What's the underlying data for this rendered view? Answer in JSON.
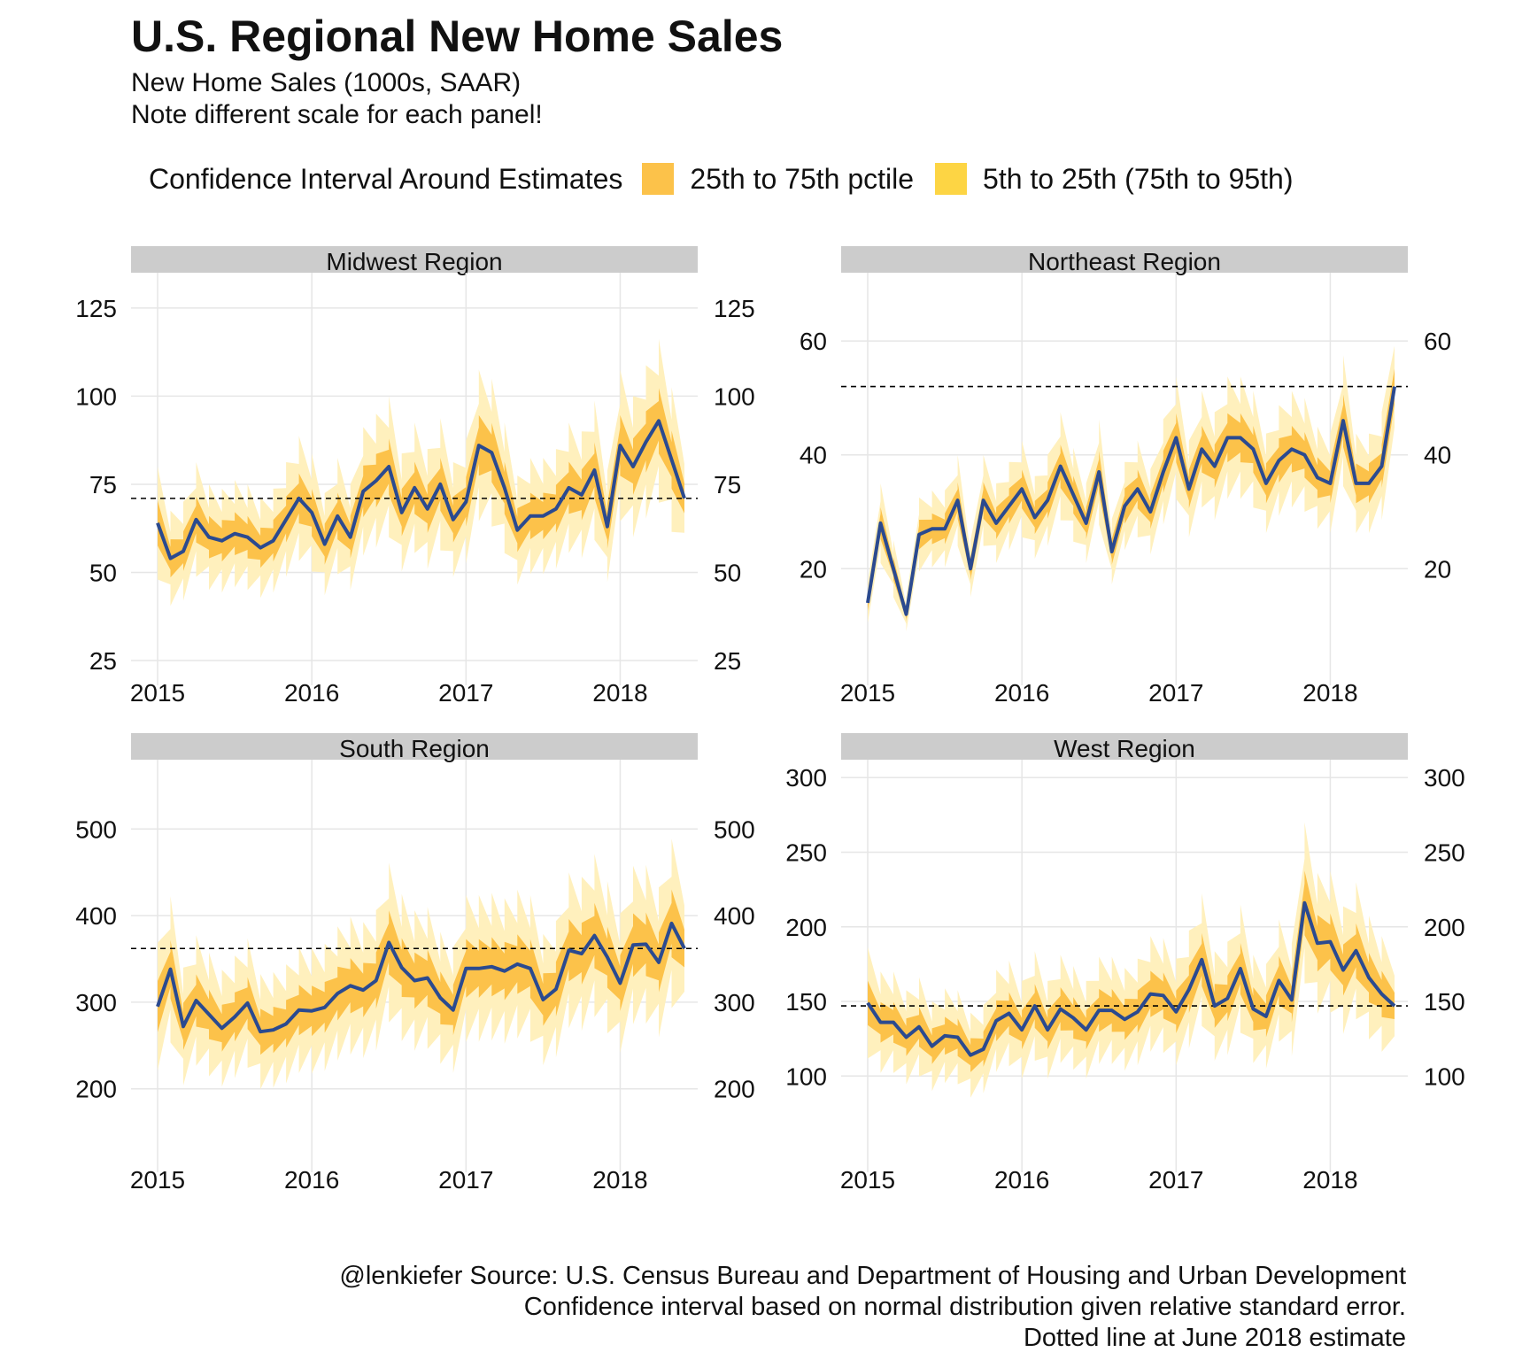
{
  "title": "U.S. Regional New Home Sales",
  "subtitle_lines": [
    "New Home Sales (1000s, SAAR)",
    "Note different scale for each panel!"
  ],
  "legend": {
    "title": "Confidence Interval Around Estimates",
    "items": [
      {
        "label": "25th to 75th pctile",
        "color": "#fcc24a"
      },
      {
        "label": "5th to 25th (75th to 95th)",
        "color": "#fdd544"
      }
    ]
  },
  "caption_lines": [
    "@lenkiefer Source: U.S. Census Bureau and Department of Housing and Urban Development",
    "Confidence interval based on normal distribution given relative standard error.",
    "Dotted line at June 2018 estimate"
  ],
  "colors": {
    "line": "#2b4a8f",
    "band_inner": "#fcc24a",
    "band_outer": "#fff0bd",
    "strip": "#cccccc",
    "grid": "#e6e6e6",
    "reference": "#000000"
  },
  "chart_data": [
    {
      "type": "line",
      "title": "Midwest Region",
      "x_start": "2015-01",
      "x_end": "2018-06",
      "x_ticks": [
        "2015",
        "2016",
        "2017",
        "2018"
      ],
      "ylim": [
        22,
        135
      ],
      "y_ticks": [
        25,
        50,
        75,
        100,
        125
      ],
      "reference_line": 71,
      "values": [
        64,
        54,
        56,
        65,
        60,
        59,
        61,
        60,
        57,
        59,
        65,
        71,
        67,
        58,
        66,
        60,
        73,
        76,
        80,
        67,
        74,
        68,
        75,
        65,
        70,
        86,
        84,
        74,
        62,
        66,
        66,
        68,
        74,
        72,
        79,
        63,
        86,
        80,
        87,
        93,
        82,
        71
      ],
      "band_inner_rel": 0.1,
      "band_outer_rel": 0.25
    },
    {
      "type": "line",
      "title": "Northeast Region",
      "x_start": "2015-01",
      "x_end": "2018-06",
      "x_ticks": [
        "2015",
        "2016",
        "2017",
        "2018"
      ],
      "ylim": [
        2,
        72
      ],
      "y_ticks": [
        20,
        40,
        60
      ],
      "reference_line": 52,
      "values": [
        14,
        28,
        20,
        12,
        26,
        27,
        27,
        32,
        20,
        32,
        28,
        31,
        34,
        29,
        32,
        38,
        33,
        28,
        37,
        23,
        31,
        34,
        30,
        37,
        43,
        34,
        41,
        38,
        43,
        43,
        41,
        35,
        39,
        41,
        40,
        36,
        35,
        46,
        35,
        35,
        38,
        52
      ],
      "band_inner_rel": 0.1,
      "band_outer_rel": 0.25
    },
    {
      "type": "line",
      "title": "South Region",
      "x_start": "2015-01",
      "x_end": "2018-06",
      "x_ticks": [
        "2015",
        "2016",
        "2017",
        "2018"
      ],
      "ylim": [
        120,
        580
      ],
      "y_ticks": [
        200,
        300,
        400,
        500
      ],
      "reference_line": 362,
      "values": [
        295,
        338,
        272,
        302,
        286,
        270,
        283,
        299,
        266,
        268,
        275,
        291,
        290,
        294,
        310,
        319,
        314,
        325,
        369,
        340,
        325,
        328,
        305,
        291,
        339,
        339,
        341,
        336,
        344,
        339,
        303,
        315,
        360,
        356,
        377,
        352,
        322,
        366,
        367,
        346,
        391,
        362
      ],
      "band_inner_rel": 0.1,
      "band_outer_rel": 0.25
    },
    {
      "type": "line",
      "title": "West Region",
      "x_start": "2015-01",
      "x_end": "2018-06",
      "x_ticks": [
        "2015",
        "2016",
        "2017",
        "2018"
      ],
      "ylim": [
        45,
        312
      ],
      "y_ticks": [
        100,
        150,
        200,
        250,
        300
      ],
      "reference_line": 147,
      "values": [
        149,
        136,
        136,
        126,
        133,
        120,
        127,
        126,
        114,
        118,
        137,
        142,
        131,
        147,
        131,
        145,
        139,
        131,
        144,
        144,
        138,
        143,
        155,
        154,
        143,
        158,
        178,
        147,
        152,
        172,
        145,
        140,
        164,
        151,
        216,
        189,
        190,
        171,
        184,
        166,
        155,
        147
      ],
      "band_inner_rel": 0.1,
      "band_outer_rel": 0.25
    }
  ]
}
